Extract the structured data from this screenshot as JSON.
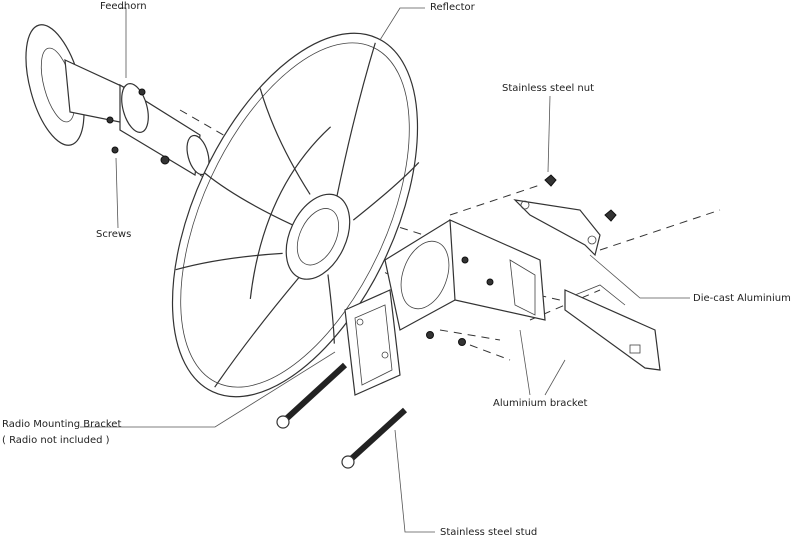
{
  "labels": [
    "Feedhorn",
    "Reflector",
    "Stainless steel nut",
    "Screws",
    "Die-cast Aluminium",
    "Aluminium bracket",
    "Radio Mounting Bracket",
    "( Radio not included )",
    "Stainless steel stud"
  ]
}
